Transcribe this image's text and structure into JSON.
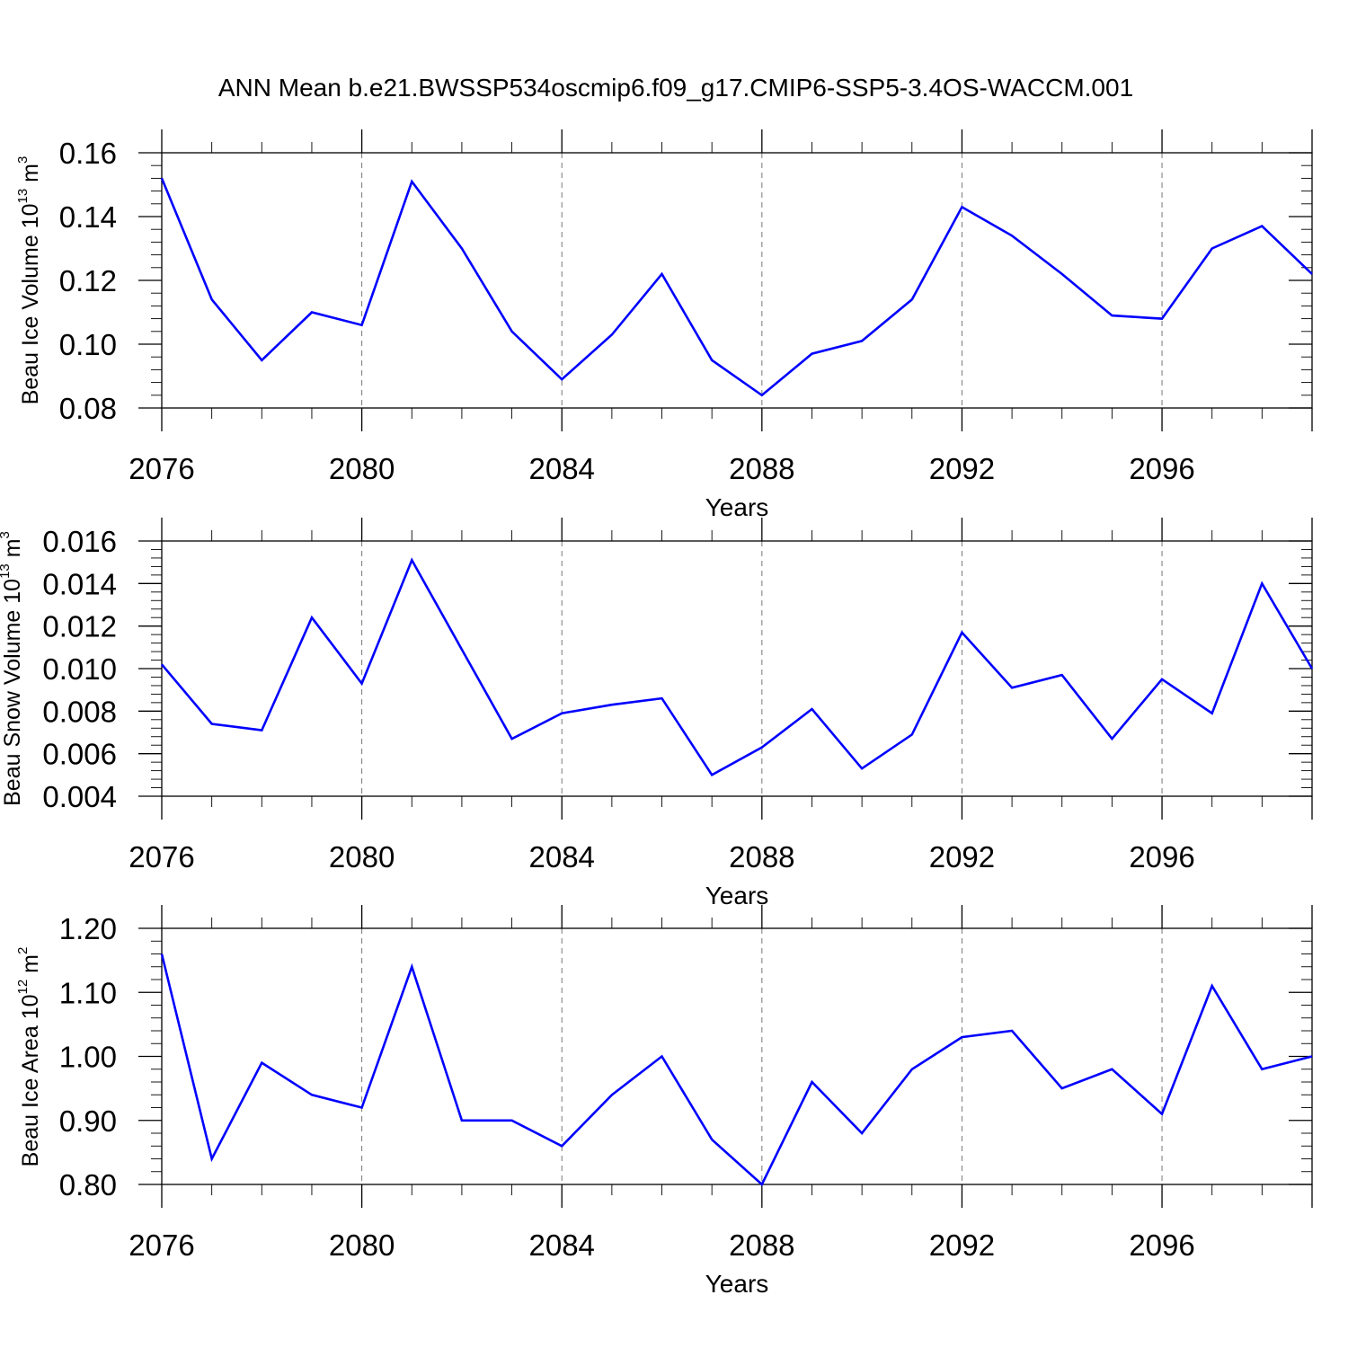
{
  "title": "ANN Mean b.e21.BWSSP534oscmip6.f09_g17.CMIP6-SSP5-3.4OS-WACCM.001",
  "colors": {
    "series": "#0000ff",
    "axis": "#000000",
    "grid": "#777777",
    "background": "#ffffff"
  },
  "chart_data": [
    {
      "type": "line",
      "ylabel": {
        "text": "Beau Ice Volume 10",
        "exponent": "13",
        "unit": " m",
        "unit_exponent": "3"
      },
      "xlabel": "Years",
      "xlim": [
        2076,
        2099
      ],
      "ylim": [
        0.08,
        0.16
      ],
      "xticks": [
        2076,
        2080,
        2084,
        2088,
        2092,
        2096
      ],
      "yticks": [
        "0.08",
        "0.10",
        "0.12",
        "0.14",
        "0.16"
      ],
      "x": [
        2076,
        2077,
        2078,
        2079,
        2080,
        2081,
        2082,
        2083,
        2084,
        2085,
        2086,
        2087,
        2088,
        2089,
        2090,
        2091,
        2092,
        2093,
        2094,
        2095,
        2096,
        2097,
        2098,
        2099
      ],
      "values": [
        0.152,
        0.114,
        0.095,
        0.11,
        0.106,
        0.151,
        0.13,
        0.104,
        0.089,
        0.103,
        0.122,
        0.095,
        0.084,
        0.097,
        0.101,
        0.114,
        0.143,
        0.134,
        0.122,
        0.109,
        0.108,
        0.13,
        0.137,
        0.122
      ]
    },
    {
      "type": "line",
      "ylabel": {
        "text": "Beau Snow Volume 10",
        "exponent": "13",
        "unit": " m",
        "unit_exponent": "3"
      },
      "xlabel": "Years",
      "xlim": [
        2076,
        2099
      ],
      "ylim": [
        0.004,
        0.016
      ],
      "xticks": [
        2076,
        2080,
        2084,
        2088,
        2092,
        2096
      ],
      "yticks": [
        "0.004",
        "0.006",
        "0.008",
        "0.010",
        "0.012",
        "0.014",
        "0.016"
      ],
      "x": [
        2076,
        2077,
        2078,
        2079,
        2080,
        2081,
        2082,
        2083,
        2084,
        2085,
        2086,
        2087,
        2088,
        2089,
        2090,
        2091,
        2092,
        2093,
        2094,
        2095,
        2096,
        2097,
        2098,
        2099
      ],
      "values": [
        0.0102,
        0.0074,
        0.0071,
        0.0124,
        0.0093,
        0.0151,
        0.0109,
        0.0067,
        0.0079,
        0.0083,
        0.0086,
        0.005,
        0.0063,
        0.0081,
        0.0053,
        0.0069,
        0.0117,
        0.0091,
        0.0097,
        0.0067,
        0.0095,
        0.0079,
        0.014,
        0.01
      ]
    },
    {
      "type": "line",
      "ylabel": {
        "text": "Beau Ice Area 10",
        "exponent": "12",
        "unit": " m",
        "unit_exponent": "2"
      },
      "xlabel": "Years",
      "xlim": [
        2076,
        2099
      ],
      "ylim": [
        0.8,
        1.2
      ],
      "xticks": [
        2076,
        2080,
        2084,
        2088,
        2092,
        2096
      ],
      "yticks": [
        "0.80",
        "0.90",
        "1.00",
        "1.10",
        "1.20"
      ],
      "x": [
        2076,
        2077,
        2078,
        2079,
        2080,
        2081,
        2082,
        2083,
        2084,
        2085,
        2086,
        2087,
        2088,
        2089,
        2090,
        2091,
        2092,
        2093,
        2094,
        2095,
        2096,
        2097,
        2098,
        2099
      ],
      "values": [
        1.16,
        0.84,
        0.99,
        0.94,
        0.92,
        1.14,
        0.9,
        0.9,
        0.86,
        0.94,
        1.0,
        0.87,
        0.8,
        0.96,
        0.88,
        0.98,
        1.03,
        1.04,
        0.95,
        0.98,
        0.91,
        1.11,
        0.98,
        1.0
      ]
    }
  ]
}
